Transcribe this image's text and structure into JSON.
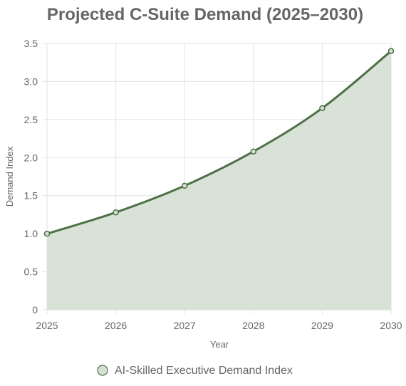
{
  "chart_data": {
    "type": "area",
    "title": "Projected C-Suite Demand (2025–2030)",
    "xlabel": "Year",
    "ylabel": "Demand Index",
    "x": [
      "2025",
      "2026",
      "2027",
      "2028",
      "2029",
      "2030"
    ],
    "y_ticks": [
      "0",
      "0.5",
      "1.0",
      "1.5",
      "2.0",
      "2.5",
      "3.0",
      "3.5"
    ],
    "ylim": [
      0,
      3.5
    ],
    "grid": true,
    "legend_position": "bottom",
    "series": [
      {
        "name": "AI-Skilled Executive Demand Index",
        "values": [
          1.0,
          1.28,
          1.63,
          2.08,
          2.65,
          3.4
        ]
      }
    ],
    "colors": {
      "line": "#4e7046",
      "fill": "#d9e2d7",
      "point_fill": "#d5e0d2",
      "grid": "#e3e3e3",
      "text": "#666666"
    }
  }
}
